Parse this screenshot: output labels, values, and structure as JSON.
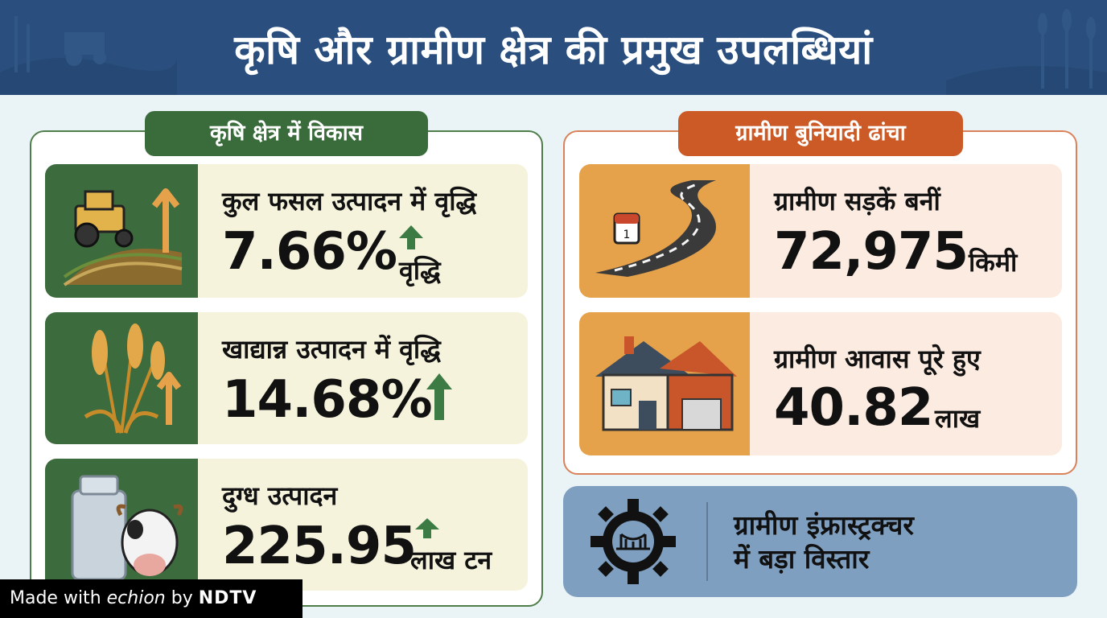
{
  "header": {
    "title": "कृषि और ग्रामीण क्षेत्र की प्रमुख उपलब्धियां"
  },
  "agriculture": {
    "title": "कृषि क्षेत्र में विकास",
    "items": [
      {
        "label": "कुल फसल उत्पादन में वृद्धि",
        "value": "7.66%",
        "unit": "वृद्धि",
        "icon": "tractor-field-icon",
        "trend": "up"
      },
      {
        "label": "खाद्यान्न उत्पादन में वृद्धि",
        "value": "14.68%",
        "unit": "",
        "icon": "wheat-icon",
        "trend": "up"
      },
      {
        "label": "दुग्ध उत्पादन",
        "value": "225.95",
        "unit": "लाख टन",
        "icon": "milk-can-cow-icon",
        "trend": "up"
      }
    ]
  },
  "rural": {
    "title": "ग्रामीण बुनियादी ढांचा",
    "items": [
      {
        "label": "ग्रामीण सड़कें बनीं",
        "value": "72,975",
        "unit": "किमी",
        "icon": "road-icon"
      },
      {
        "label": "ग्रामीण आवास पूरे हुए",
        "value": "40.82",
        "unit": "लाख",
        "icon": "house-icon"
      }
    ]
  },
  "banner": {
    "line1": "ग्रामीण इंफ्रास्ट्रक्चर",
    "line2": "में बड़ा विस्तार",
    "icon": "gear-bridge-icon"
  },
  "footer": {
    "made_with": "Made with",
    "brand": "echion",
    "by": "by",
    "partner": "NDTV"
  },
  "colors": {
    "header": "#2a4f7e",
    "green": "#3a6b3b",
    "orange": "#cc5a26",
    "banner": "#7f9fc0"
  }
}
